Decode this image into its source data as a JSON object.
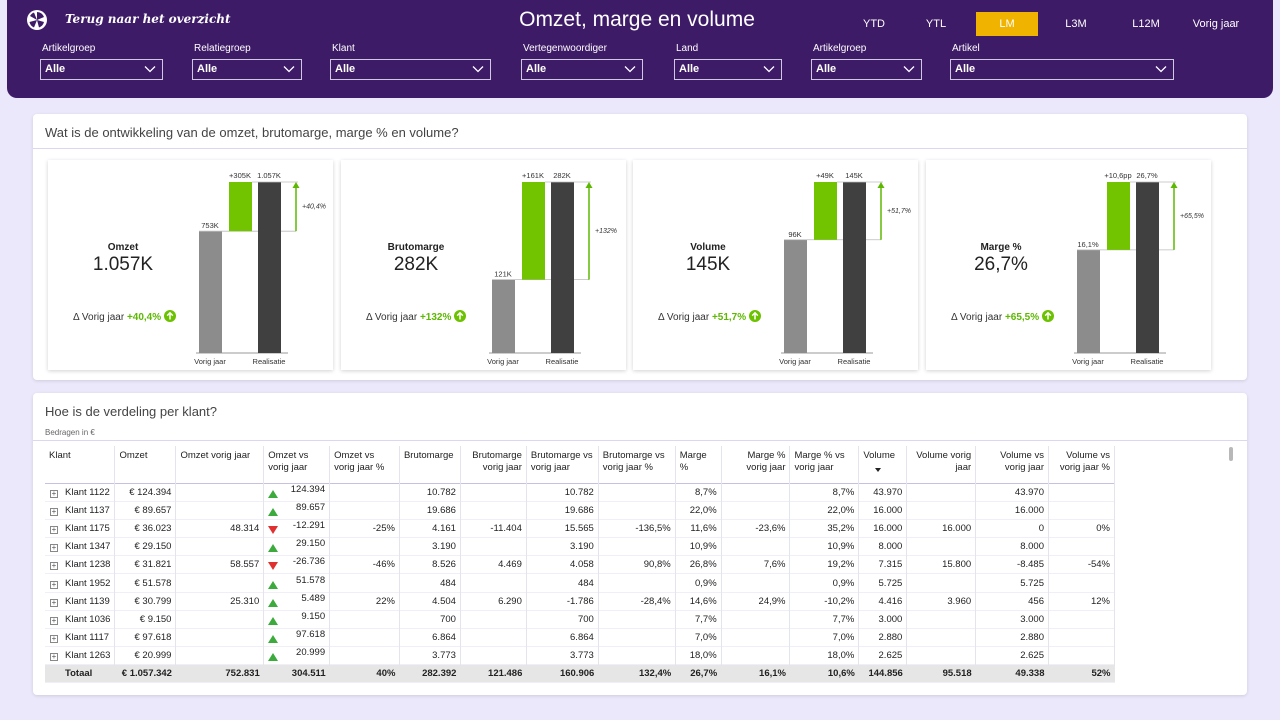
{
  "header": {
    "back_label": "Terug naar het overzicht",
    "title": "Omzet, marge en volume",
    "periods": [
      "YTD",
      "YTL",
      "LM",
      "L3M",
      "L12M",
      "Vorig jaar"
    ],
    "active_period": "LM",
    "active_color": "#f0b400",
    "background": "#3e1b67"
  },
  "filters": [
    {
      "label": "Artikelgroep",
      "value": "Alle"
    },
    {
      "label": "Relatiegroep",
      "value": "Alle"
    },
    {
      "label": "Klant",
      "value": "Alle"
    },
    {
      "label": "Vertegenwoordiger",
      "value": "Alle"
    },
    {
      "label": "Land",
      "value": "Alle"
    },
    {
      "label": "Artikelgroep",
      "value": "Alle"
    },
    {
      "label": "Artikel",
      "value": "Alle"
    }
  ],
  "kpi_section": {
    "title": "Wat is de ontwikkeling van de omzet, brutomarge, marge % en volume?",
    "delta_prefix": "Δ Vorig jaar",
    "axis_prev": "Vorig jaar",
    "axis_real": "Realisatie",
    "colors": {
      "prev": "#8c8c8c",
      "delta": "#72c400",
      "real": "#404040",
      "arrow": "#5cb800"
    }
  },
  "kpis": [
    {
      "name": "Omzet",
      "value": "1.057K",
      "delta": "+40,4%",
      "prev": 753,
      "real": 1057,
      "prev_label": "753K",
      "delta_label": "+305K",
      "real_label": "1.057K",
      "pct_label": "+40,4%"
    },
    {
      "name": "Brutomarge",
      "value": "282K",
      "delta": "+132%",
      "prev": 121,
      "real": 282,
      "prev_label": "121K",
      "delta_label": "+161K",
      "real_label": "282K",
      "pct_label": "+132%"
    },
    {
      "name": "Volume",
      "value": "145K",
      "delta": "+51,7%",
      "prev": 96,
      "real": 145,
      "prev_label": "96K",
      "delta_label": "+49K",
      "real_label": "145K",
      "pct_label": "+51,7%"
    },
    {
      "name": "Marge %",
      "value": "26,7%",
      "delta": "+65,5%",
      "prev": 16.1,
      "real": 26.7,
      "prev_label": "16,1%",
      "delta_label": "+10,6pp",
      "real_label": "26,7%",
      "pct_label": "+65,5%"
    }
  ],
  "table_section": {
    "title": "Hoe is de verdeling per klant?",
    "subtitle": "Bedragen in €"
  },
  "table": {
    "columns": [
      "Klant",
      "Omzet",
      "Omzet vorig jaar",
      "Omzet vs vorig jaar",
      "Omzet vs vorig jaar %",
      "Brutomarge",
      "Brutomarge vorig jaar",
      "Brutomarge vs vorig jaar",
      "Brutomarge vs vorig jaar %",
      "Marge %",
      "Marge % vorig jaar",
      "Marge % vs vorig jaar",
      "Volume",
      "Volume vorig jaar",
      "Volume vs vorig jaar",
      "Volume vs vorig jaar %"
    ],
    "rows": [
      {
        "klant": "Klant 1122",
        "omzet": "€ 124.394",
        "omzet_vj": "",
        "trend": "up",
        "omzet_vs": "124.394",
        "omzet_vs_pct": "",
        "bm": "10.782",
        "bm_vj": "",
        "bm_vs": "10.782",
        "bm_vs_pct": "",
        "marge": "8,7%",
        "marge_vj": "",
        "marge_vs": "8,7%",
        "vol": "43.970",
        "vol_vj": "",
        "vol_vs": "43.970",
        "vol_vs_pct": ""
      },
      {
        "klant": "Klant 1137",
        "omzet": "€ 89.657",
        "omzet_vj": "",
        "trend": "up",
        "omzet_vs": "89.657",
        "omzet_vs_pct": "",
        "bm": "19.686",
        "bm_vj": "",
        "bm_vs": "19.686",
        "bm_vs_pct": "",
        "marge": "22,0%",
        "marge_vj": "",
        "marge_vs": "22,0%",
        "vol": "16.000",
        "vol_vj": "",
        "vol_vs": "16.000",
        "vol_vs_pct": ""
      },
      {
        "klant": "Klant 1175",
        "omzet": "€ 36.023",
        "omzet_vj": "48.314",
        "trend": "down",
        "omzet_vs": "-12.291",
        "omzet_vs_pct": "-25%",
        "bm": "4.161",
        "bm_vj": "-11.404",
        "bm_vs": "15.565",
        "bm_vs_pct": "-136,5%",
        "marge": "11,6%",
        "marge_vj": "-23,6%",
        "marge_vs": "35,2%",
        "vol": "16.000",
        "vol_vj": "16.000",
        "vol_vs": "0",
        "vol_vs_pct": "0%"
      },
      {
        "klant": "Klant 1347",
        "omzet": "€ 29.150",
        "omzet_vj": "",
        "trend": "up",
        "omzet_vs": "29.150",
        "omzet_vs_pct": "",
        "bm": "3.190",
        "bm_vj": "",
        "bm_vs": "3.190",
        "bm_vs_pct": "",
        "marge": "10,9%",
        "marge_vj": "",
        "marge_vs": "10,9%",
        "vol": "8.000",
        "vol_vj": "",
        "vol_vs": "8.000",
        "vol_vs_pct": ""
      },
      {
        "klant": "Klant 1238",
        "omzet": "€ 31.821",
        "omzet_vj": "58.557",
        "trend": "down",
        "omzet_vs": "-26.736",
        "omzet_vs_pct": "-46%",
        "bm": "8.526",
        "bm_vj": "4.469",
        "bm_vs": "4.058",
        "bm_vs_pct": "90,8%",
        "marge": "26,8%",
        "marge_vj": "7,6%",
        "marge_vs": "19,2%",
        "vol": "7.315",
        "vol_vj": "15.800",
        "vol_vs": "-8.485",
        "vol_vs_pct": "-54%"
      },
      {
        "klant": "Klant 1952",
        "omzet": "€ 51.578",
        "omzet_vj": "",
        "trend": "up",
        "omzet_vs": "51.578",
        "omzet_vs_pct": "",
        "bm": "484",
        "bm_vj": "",
        "bm_vs": "484",
        "bm_vs_pct": "",
        "marge": "0,9%",
        "marge_vj": "",
        "marge_vs": "0,9%",
        "vol": "5.725",
        "vol_vj": "",
        "vol_vs": "5.725",
        "vol_vs_pct": ""
      },
      {
        "klant": "Klant 1139",
        "omzet": "€ 30.799",
        "omzet_vj": "25.310",
        "trend": "up",
        "omzet_vs": "5.489",
        "omzet_vs_pct": "22%",
        "bm": "4.504",
        "bm_vj": "6.290",
        "bm_vs": "-1.786",
        "bm_vs_pct": "-28,4%",
        "marge": "14,6%",
        "marge_vj": "24,9%",
        "marge_vs": "-10,2%",
        "vol": "4.416",
        "vol_vj": "3.960",
        "vol_vs": "456",
        "vol_vs_pct": "12%"
      },
      {
        "klant": "Klant 1036",
        "omzet": "€ 9.150",
        "omzet_vj": "",
        "trend": "up",
        "omzet_vs": "9.150",
        "omzet_vs_pct": "",
        "bm": "700",
        "bm_vj": "",
        "bm_vs": "700",
        "bm_vs_pct": "",
        "marge": "7,7%",
        "marge_vj": "",
        "marge_vs": "7,7%",
        "vol": "3.000",
        "vol_vj": "",
        "vol_vs": "3.000",
        "vol_vs_pct": ""
      },
      {
        "klant": "Klant 1117",
        "omzet": "€ 97.618",
        "omzet_vj": "",
        "trend": "up",
        "omzet_vs": "97.618",
        "omzet_vs_pct": "",
        "bm": "6.864",
        "bm_vj": "",
        "bm_vs": "6.864",
        "bm_vs_pct": "",
        "marge": "7,0%",
        "marge_vj": "",
        "marge_vs": "7,0%",
        "vol": "2.880",
        "vol_vj": "",
        "vol_vs": "2.880",
        "vol_vs_pct": ""
      },
      {
        "klant": "Klant 1263",
        "omzet": "€ 20.999",
        "omzet_vj": "",
        "trend": "up",
        "omzet_vs": "20.999",
        "omzet_vs_pct": "",
        "bm": "3.773",
        "bm_vj": "",
        "bm_vs": "3.773",
        "bm_vs_pct": "",
        "marge": "18,0%",
        "marge_vj": "",
        "marge_vs": "18,0%",
        "vol": "2.625",
        "vol_vj": "",
        "vol_vs": "2.625",
        "vol_vs_pct": ""
      }
    ],
    "totals": {
      "klant": "Totaal",
      "omzet": "€ 1.057.342",
      "omzet_vj": "752.831",
      "omzet_vs": "304.511",
      "omzet_vs_pct": "40%",
      "bm": "282.392",
      "bm_vj": "121.486",
      "bm_vs": "160.906",
      "bm_vs_pct": "132,4%",
      "marge": "26,7%",
      "marge_vj": "16,1%",
      "marge_vs": "10,6%",
      "vol": "144.856",
      "vol_vj": "95.518",
      "vol_vs": "49.338",
      "vol_vs_pct": "52%"
    }
  }
}
